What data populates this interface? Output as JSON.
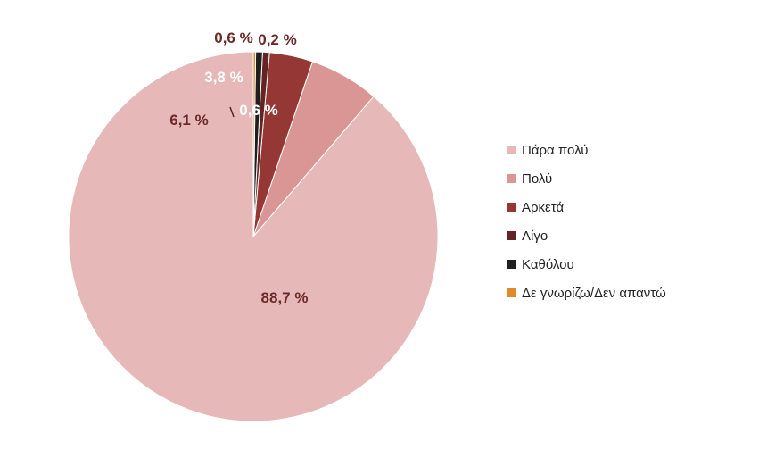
{
  "chart_data": {
    "type": "pie",
    "title": "",
    "legend_position": "right",
    "slices": [
      {
        "label": "Πάρα πολύ",
        "value": 88.7,
        "value_label": "88,7 %",
        "color": "#e6b8b7",
        "label_color": "#6b2a2a"
      },
      {
        "label": "Πολύ",
        "value": 6.1,
        "value_label": "6,1 %",
        "color": "#d99694",
        "label_color": "#6b2a2a"
      },
      {
        "label": "Αρκετά",
        "value": 3.8,
        "value_label": "3,8 %",
        "color": "#953735",
        "label_color": "#ffffff"
      },
      {
        "label": "Λίγο",
        "value": 0.6,
        "value_label": "0,6 %",
        "color": "#632423",
        "label_color": "#6b2a2a"
      },
      {
        "label": "Καθόλου",
        "value": 0.6,
        "value_label": "0,6 %",
        "color": "#1f1f1f",
        "label_color": "#ffffff"
      },
      {
        "label": "Δε γνωρίζω/Δεν απαντώ",
        "value": 0.2,
        "value_label": "0,2 %",
        "color": "#e08a2c",
        "label_color": "#6b2a2a"
      }
    ]
  }
}
